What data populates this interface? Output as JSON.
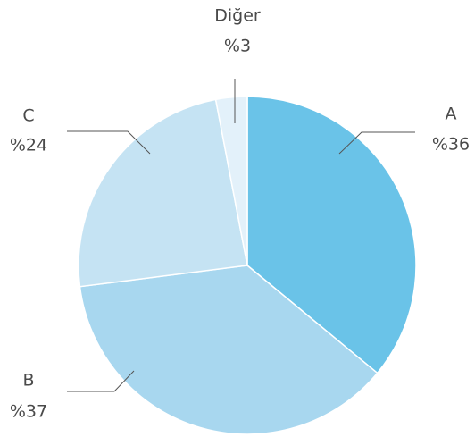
{
  "chart_data": {
    "type": "pie",
    "categories": [
      "A",
      "B",
      "C",
      "Diğer"
    ],
    "values": [
      36,
      37,
      24,
      3
    ],
    "value_labels": [
      "%36",
      "%37",
      "%24",
      "%3"
    ],
    "colors": [
      "#6ac3e8",
      "#a8d7ef",
      "#c5e3f3",
      "#e3f1fa"
    ]
  }
}
